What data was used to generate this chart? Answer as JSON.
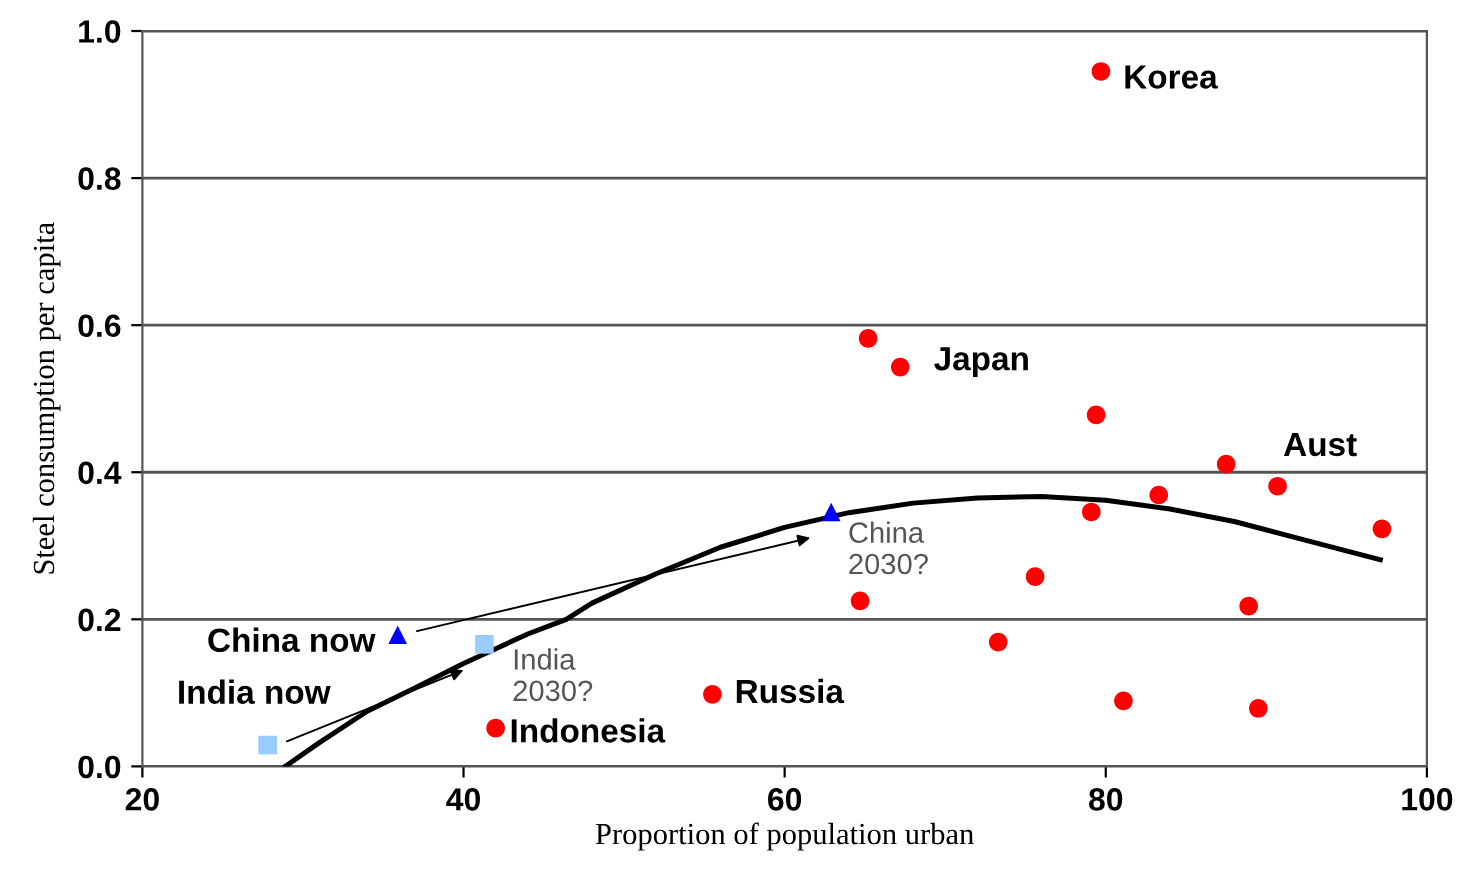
{
  "chart_data": {
    "type": "scatter",
    "xlabel": "Proportion of population urban",
    "ylabel": "Steel consumption per capita",
    "xlim": [
      20,
      100
    ],
    "xticks": [
      20,
      40,
      60,
      80,
      100
    ],
    "ylim": [
      0,
      1.0
    ],
    "yticks": [
      {
        "value": 0,
        "label": "0.0"
      },
      {
        "value": 0.2,
        "label": "0.2"
      },
      {
        "value": 0.4,
        "label": "0.4"
      },
      {
        "value": 0.6,
        "label": "0.6"
      },
      {
        "value": 0.8,
        "label": "0.8"
      },
      {
        "value": 1.0,
        "label": "1.0"
      }
    ],
    "grid": "y",
    "legend": false,
    "series": [
      {
        "marker": "circle",
        "color": "#ff0000",
        "x": [
          79.7,
          65.2,
          67.2,
          79.4,
          87.5,
          90.7,
          83.3,
          79.1,
          97.2,
          75.6,
          64.7,
          88.9,
          73.3,
          55.5,
          81.1,
          89.5,
          42.0
        ],
        "values": [
          0.945,
          0.582,
          0.543,
          0.478,
          0.411,
          0.381,
          0.369,
          0.346,
          0.323,
          0.258,
          0.225,
          0.218,
          0.169,
          0.098,
          0.089,
          0.079,
          0.052
        ]
      },
      {
        "marker": "triangle",
        "color": "#0000ff",
        "x": [
          35.9,
          62.9
        ],
        "values": [
          0.179,
          0.346
        ]
      },
      {
        "marker": "square",
        "color": "#99ccff",
        "x": [
          27.8,
          41.3
        ],
        "values": [
          0.029,
          0.166
        ]
      },
      {
        "type": "line",
        "marker": "none",
        "color": "#000000",
        "x": [
          28.9,
          31,
          34,
          37,
          40,
          44,
          46.4,
          48,
          52,
          56,
          60,
          64,
          68,
          72,
          76,
          80,
          84,
          88,
          92,
          97.1
        ],
        "values": [
          0,
          0.032,
          0.075,
          0.107,
          0.14,
          0.18,
          0.2,
          0.222,
          0.262,
          0.298,
          0.325,
          0.345,
          0.358,
          0.365,
          0.367,
          0.362,
          0.35,
          0.333,
          0.31,
          0.281
        ]
      }
    ],
    "annotations": [
      {
        "text": "Korea",
        "x": 79.7,
        "y": 0.945
      },
      {
        "text": "Japan",
        "x": 67.2,
        "y": 0.543
      },
      {
        "text": "Aust",
        "x": 90.7,
        "y": 0.381
      },
      {
        "text": "Russia",
        "x": 55.5,
        "y": 0.098
      },
      {
        "text": "Indonesia",
        "x": 42.0,
        "y": 0.052
      },
      {
        "text": "China now",
        "x": 35.9,
        "y": 0.179
      },
      {
        "text": "India now",
        "x": 27.8,
        "y": 0.029
      },
      {
        "text": "China\n2030?",
        "x": 62.9,
        "y": 0.346
      },
      {
        "text": "India\n2030?",
        "x": 41.3,
        "y": 0.166
      }
    ]
  }
}
